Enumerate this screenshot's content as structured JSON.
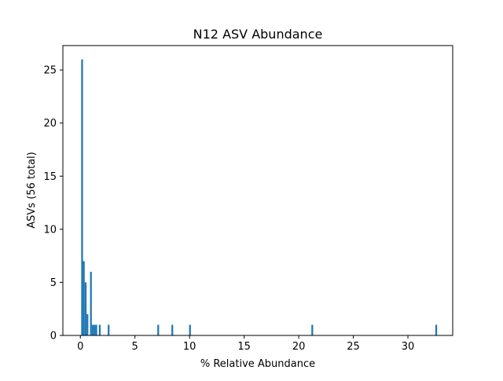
{
  "chart_data": {
    "type": "bar",
    "title": "N12 ASV Abundance",
    "xlabel": "% Relative Abundance",
    "ylabel": "ASVs (56 total)",
    "xlim": [
      -1.6,
      34.1
    ],
    "ylim": [
      0,
      27.3
    ],
    "xticks": [
      0,
      5,
      10,
      15,
      20,
      25,
      30
    ],
    "yticks": [
      0,
      5,
      10,
      15,
      20,
      25
    ],
    "bar_width": 0.162,
    "bar_color": "#1f77b4",
    "grid": false,
    "bars": [
      {
        "x": 0.16,
        "value": 26
      },
      {
        "x": 0.32,
        "value": 7
      },
      {
        "x": 0.49,
        "value": 5
      },
      {
        "x": 0.65,
        "value": 2
      },
      {
        "x": 0.81,
        "value": 0
      },
      {
        "x": 0.97,
        "value": 6
      },
      {
        "x": 1.14,
        "value": 1
      },
      {
        "x": 1.3,
        "value": 1
      },
      {
        "x": 1.46,
        "value": 1
      },
      {
        "x": 1.62,
        "value": 0
      },
      {
        "x": 1.78,
        "value": 1
      },
      {
        "x": 2.59,
        "value": 1
      },
      {
        "x": 7.13,
        "value": 1
      },
      {
        "x": 8.42,
        "value": 1
      },
      {
        "x": 10.04,
        "value": 1
      },
      {
        "x": 21.24,
        "value": 1
      },
      {
        "x": 32.59,
        "value": 1
      }
    ]
  }
}
